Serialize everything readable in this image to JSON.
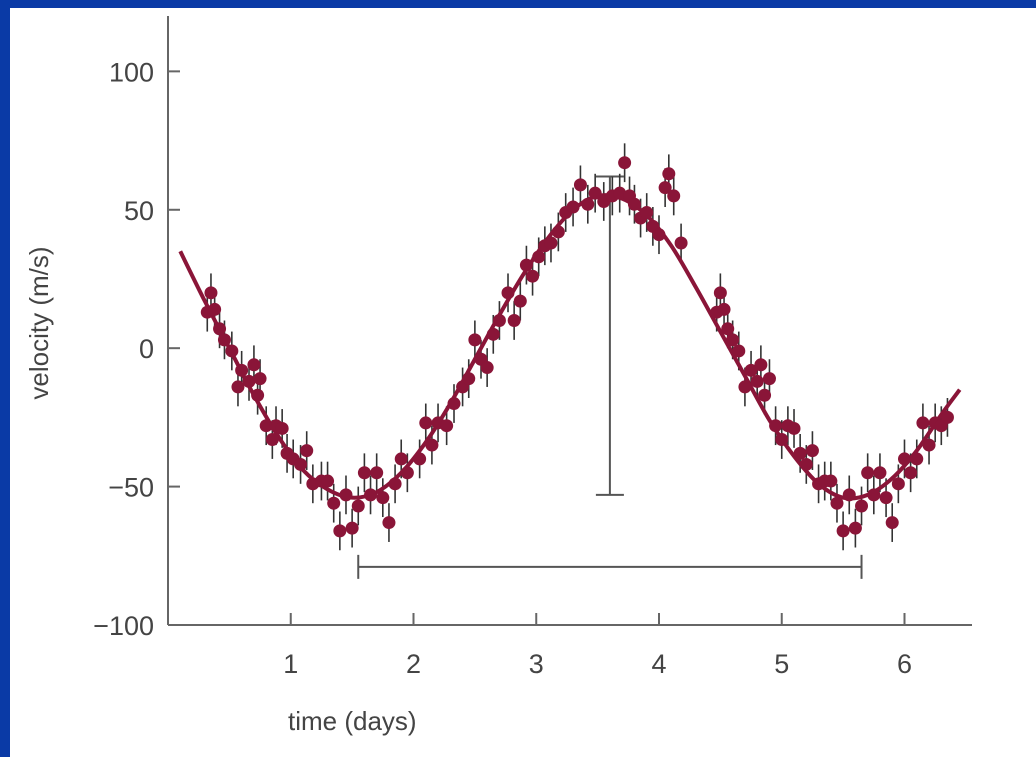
{
  "colors": {
    "background_border": "#0a3aa6",
    "plot_background": "#ffffff",
    "axis": "#666666",
    "series": "#8a1538",
    "error_bar": "#333333",
    "annotation": "#555555"
  },
  "chart_data": {
    "type": "scatter",
    "title": "",
    "xlabel": "time (days)",
    "ylabel": "velocity (m/s)",
    "xlim": [
      0,
      6.55
    ],
    "ylim": [
      -100,
      120
    ],
    "xticks": [
      1,
      2,
      3,
      4,
      5,
      6
    ],
    "xtick_labels": [
      "1",
      "2",
      "3",
      "4",
      "5",
      "6"
    ],
    "yticks": [
      100,
      50,
      0,
      -50,
      -100
    ],
    "ytick_labels": [
      "100",
      "50",
      "0",
      "−50",
      "−100"
    ],
    "grid": false,
    "legend": "none",
    "fit_curve": {
      "x": [
        0.1,
        0.3,
        0.5,
        0.7,
        0.9,
        1.1,
        1.3,
        1.5,
        1.7,
        1.9,
        2.1,
        2.3,
        2.5,
        2.7,
        2.9,
        3.1,
        3.3,
        3.5,
        3.7,
        3.9,
        4.1,
        4.3,
        4.5,
        4.7,
        4.9,
        5.1,
        5.3,
        5.5,
        5.7,
        5.9,
        6.1,
        6.3,
        6.45
      ],
      "y": [
        35,
        17,
        0,
        -17,
        -32,
        -44,
        -51,
        -54,
        -52,
        -45,
        -34,
        -20,
        -4,
        12,
        27,
        40,
        50,
        55,
        54,
        48,
        37,
        22,
        6,
        -10,
        -26,
        -39,
        -49,
        -54,
        -53,
        -47,
        -37,
        -24,
        -15
      ]
    },
    "series": [
      {
        "x": [
          0.32,
          0.35,
          0.38,
          0.42,
          0.46,
          0.52,
          0.57,
          0.6,
          0.66,
          0.7,
          0.73,
          0.75,
          0.8,
          0.85,
          0.88,
          0.93,
          0.97,
          1.02,
          1.08,
          1.13,
          1.18,
          1.25,
          1.3,
          1.35,
          1.4,
          1.45,
          1.5,
          1.55,
          1.6,
          1.65,
          1.7,
          1.75,
          1.8,
          1.85,
          1.9,
          1.95,
          2.05,
          2.1,
          2.15,
          2.2,
          2.27,
          2.33,
          2.4,
          2.45,
          2.5,
          2.55,
          2.6,
          2.65,
          2.7,
          2.77,
          2.82,
          2.87,
          2.92,
          2.97,
          3.02,
          3.07,
          3.12,
          3.18,
          3.24,
          3.3,
          3.36,
          3.42,
          3.48,
          3.55,
          3.62,
          3.68,
          3.72,
          3.76,
          3.8,
          3.85,
          3.9,
          3.95,
          4.0,
          4.05,
          4.08,
          4.12,
          4.18
        ],
        "y": [
          13,
          20,
          14,
          7,
          3,
          -1,
          -14,
          -8,
          -12,
          -6,
          -17,
          -11,
          -28,
          -33,
          -28,
          -29,
          -38,
          -40,
          -42,
          -37,
          -49,
          -48,
          -48,
          -56,
          -66,
          -53,
          -65,
          -57,
          -45,
          -53,
          -45,
          -54,
          -63,
          -49,
          -40,
          -45,
          -40,
          -27,
          -35,
          -27,
          -28,
          -20,
          -14,
          -11,
          3,
          -4,
          -7,
          5,
          10,
          20,
          10,
          17,
          30,
          26,
          33,
          37,
          38,
          42,
          49,
          51,
          59,
          52,
          56,
          53,
          55,
          56,
          67,
          55,
          52,
          47,
          49,
          44,
          41,
          58,
          63,
          55,
          38
        ]
      },
      {
        "x": [
          4.47,
          4.5,
          4.53,
          4.56,
          4.6,
          4.65,
          4.7,
          4.75,
          4.8,
          4.83,
          4.86,
          4.9,
          4.95,
          5.0,
          5.05,
          5.1,
          5.15,
          5.2,
          5.25,
          5.3,
          5.35,
          5.4,
          5.45,
          5.5,
          5.55,
          5.6,
          5.65,
          5.7,
          5.75,
          5.8,
          5.85,
          5.9,
          5.95,
          6.0,
          6.05,
          6.1,
          6.15,
          6.2,
          6.25,
          6.3,
          6.35
        ],
        "y": [
          13,
          20,
          14,
          7,
          3,
          -1,
          -14,
          -8,
          -12,
          -6,
          -17,
          -11,
          -28,
          -33,
          -28,
          -29,
          -38,
          -42,
          -37,
          -49,
          -48,
          -48,
          -56,
          -66,
          -53,
          -65,
          -57,
          -45,
          -53,
          -45,
          -54,
          -63,
          -49,
          -40,
          -45,
          -40,
          -27,
          -35,
          -27,
          -28,
          -25
        ]
      }
    ],
    "error_bar_half_height": 7,
    "annotations": [
      {
        "type": "vertical-bracket",
        "x": 3.6,
        "y_range": [
          -53,
          62
        ]
      },
      {
        "type": "horizontal-bracket",
        "x_range": [
          1.55,
          5.65
        ],
        "y": -79
      }
    ]
  }
}
